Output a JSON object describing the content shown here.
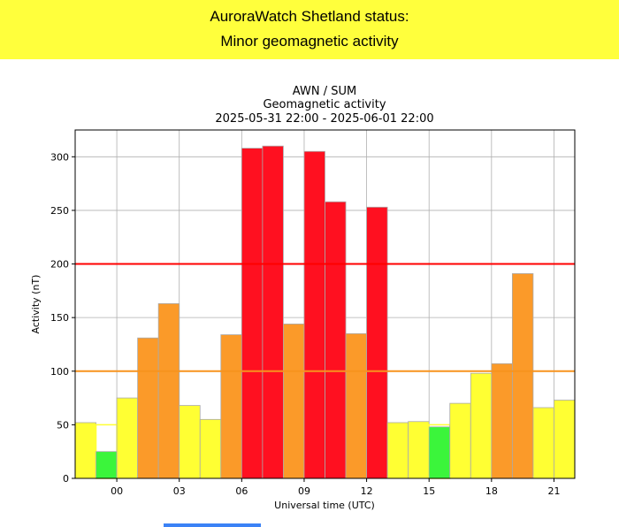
{
  "banner": {
    "line1": "AuroraWatch Shetland status:",
    "line2": "Minor geomagnetic activity"
  },
  "chart_data": {
    "type": "bar",
    "title": [
      "AWN / SUM",
      "Geomagnetic activity",
      "2025-05-31 22:00 - 2025-06-01 22:00"
    ],
    "xlabel": "Universal time (UTC)",
    "ylabel": "Activity (nT)",
    "ylim": [
      0,
      325
    ],
    "yticks": [
      0,
      50,
      100,
      150,
      200,
      250,
      300
    ],
    "xticks": [
      {
        "hour": 0,
        "label": "00"
      },
      {
        "hour": 3,
        "label": "03"
      },
      {
        "hour": 6,
        "label": "06"
      },
      {
        "hour": 9,
        "label": "09"
      },
      {
        "hour": 12,
        "label": "12"
      },
      {
        "hour": 15,
        "label": "15"
      },
      {
        "hour": 18,
        "label": "18"
      },
      {
        "hour": 21,
        "label": "21"
      }
    ],
    "start_hour": -2,
    "values": [
      52,
      25,
      75,
      131,
      163,
      68,
      55,
      134,
      308,
      310,
      144,
      305,
      258,
      135,
      253,
      52,
      53,
      48,
      70,
      98,
      107,
      191,
      66,
      73
    ],
    "levels": [
      "yellow",
      "green",
      "yellow",
      "amber",
      "amber",
      "yellow",
      "yellow",
      "amber",
      "red",
      "red",
      "amber",
      "red",
      "red",
      "amber",
      "red",
      "yellow",
      "yellow",
      "green",
      "yellow",
      "yellow",
      "amber",
      "amber",
      "yellow",
      "yellow"
    ],
    "thresholds": [
      {
        "value": 100,
        "color": "#f7931e"
      },
      {
        "value": 200,
        "color": "#ff0000"
      }
    ],
    "green_marker": 50,
    "colors": {
      "green": "#3bf53b",
      "yellow": "#ffff33",
      "amber": "#fb9a29",
      "red": "#ff1020"
    },
    "grid": true
  }
}
